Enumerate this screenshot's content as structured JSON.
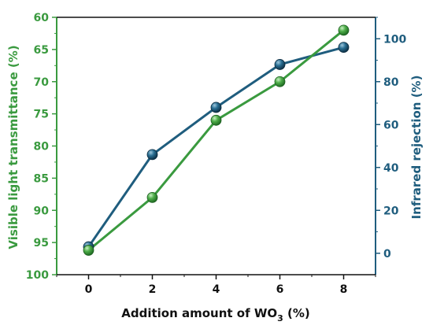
{
  "chart_data": {
    "type": "line",
    "xlabel": "Addition amount of WO",
    "xlabel_sub": "3",
    "xlabel_suffix": " (%)",
    "ylabel_left": "Visible light transmittance (%)",
    "ylabel_right": "Infrared rejection (%)",
    "x_ticks": [
      "0",
      "2",
      "4",
      "6",
      "8"
    ],
    "y_left_ticks": [
      "60",
      "65",
      "70",
      "75",
      "80",
      "85",
      "90",
      "95",
      "100"
    ],
    "y_right_ticks": [
      "0",
      "20",
      "40",
      "60",
      "80",
      "100"
    ],
    "xlim": [
      -1,
      9
    ],
    "ylim_left": [
      60,
      100
    ],
    "ylim_left_inverted": true,
    "ylim_right": [
      -10,
      110
    ],
    "grid": false,
    "legend": "none",
    "series": [
      {
        "axis": "left",
        "color": "#3a9a3f",
        "x": [
          0,
          2,
          4,
          6,
          8
        ],
        "values": [
          96.2,
          88,
          76,
          70,
          62
        ]
      },
      {
        "axis": "right",
        "color": "#1f5d7e",
        "x": [
          0,
          2,
          4,
          6,
          8
        ],
        "values": [
          3,
          46,
          68,
          88,
          96
        ]
      }
    ]
  }
}
